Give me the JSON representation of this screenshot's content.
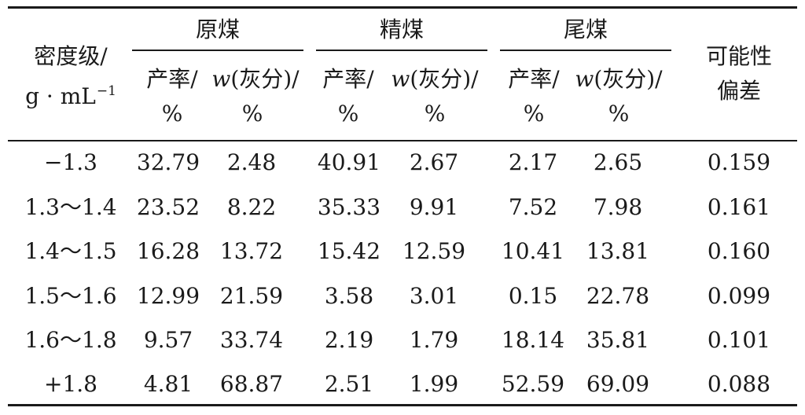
{
  "table": {
    "header": {
      "density_label": "密度级/",
      "density_unit_base": "g · mL",
      "density_unit_exp": "−1",
      "groups": [
        "原煤",
        "精煤",
        "尾煤"
      ],
      "sub_yield": "产率/",
      "sub_ash_w": "w",
      "sub_ash_rest": "(灰分)/",
      "percent": "%",
      "deviation_line1": "可能性",
      "deviation_line2": "偏差"
    },
    "rows": [
      {
        "density": "−1.3",
        "raw_yield": "32.79",
        "raw_ash": "2.48",
        "clean_yield": "40.91",
        "clean_ash": "2.67",
        "tail_yield": "2.17",
        "tail_ash": "2.65",
        "deviation": "0.159"
      },
      {
        "density": "1.3～1.4",
        "raw_yield": "23.52",
        "raw_ash": "8.22",
        "clean_yield": "35.33",
        "clean_ash": "9.91",
        "tail_yield": "7.52",
        "tail_ash": "7.98",
        "deviation": "0.161"
      },
      {
        "density": "1.4～1.5",
        "raw_yield": "16.28",
        "raw_ash": "13.72",
        "clean_yield": "15.42",
        "clean_ash": "12.59",
        "tail_yield": "10.41",
        "tail_ash": "13.81",
        "deviation": "0.160"
      },
      {
        "density": "1.5～1.6",
        "raw_yield": "12.99",
        "raw_ash": "21.59",
        "clean_yield": "3.58",
        "clean_ash": "3.01",
        "tail_yield": "0.15",
        "tail_ash": "22.78",
        "deviation": "0.099"
      },
      {
        "density": "1.6～1.8",
        "raw_yield": "9.57",
        "raw_ash": "33.74",
        "clean_yield": "2.19",
        "clean_ash": "1.79",
        "tail_yield": "18.14",
        "tail_ash": "35.81",
        "deviation": "0.101"
      },
      {
        "density": "+1.8",
        "raw_yield": "4.81",
        "raw_ash": "68.87",
        "clean_yield": "2.51",
        "clean_ash": "1.99",
        "tail_yield": "52.59",
        "tail_ash": "69.09",
        "deviation": "0.088"
      }
    ]
  }
}
